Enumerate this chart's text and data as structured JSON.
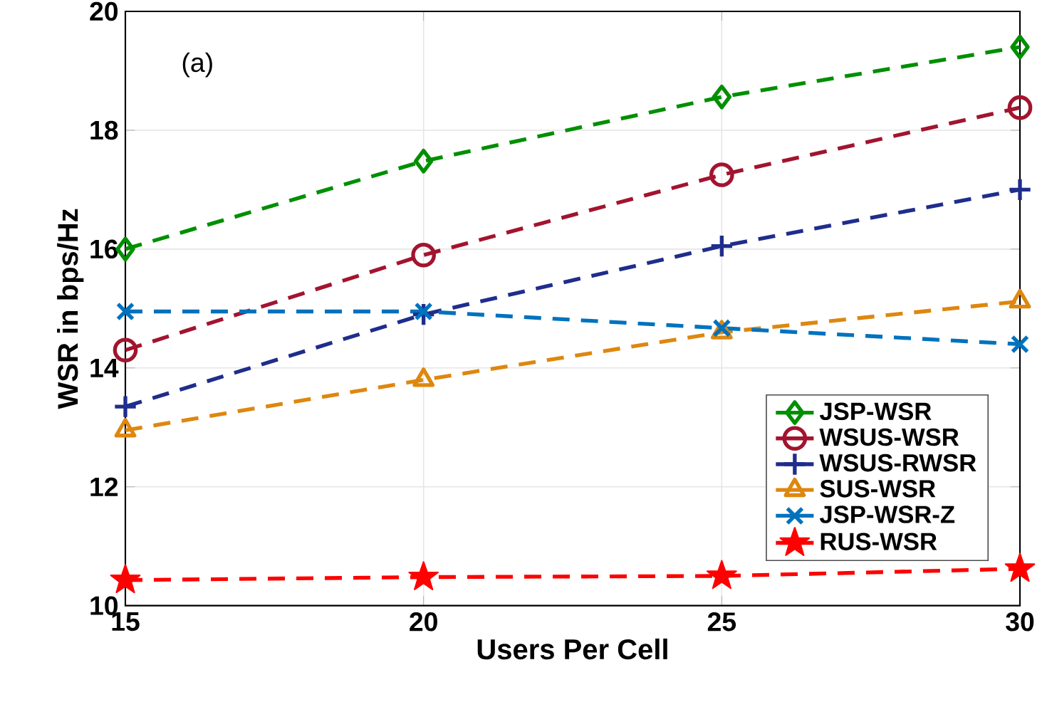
{
  "chart_data": {
    "type": "line",
    "xlabel": "Users Per Cell",
    "ylabel": "WSR in bps/Hz",
    "annotations": [
      "(a)"
    ],
    "x": [
      15,
      20,
      25,
      30
    ],
    "series": [
      {
        "name": "JSP-WSR",
        "color": "#008f00",
        "marker": "diamond",
        "values": [
          16.0,
          17.48,
          18.56,
          19.4
        ]
      },
      {
        "name": "WSUS-WSR",
        "color": "#a2142f",
        "marker": "circle",
        "values": [
          14.3,
          15.9,
          17.25,
          18.38
        ]
      },
      {
        "name": "WSUS-RWSR",
        "color": "#1f2d8c",
        "marker": "plus",
        "values": [
          13.35,
          14.9,
          16.05,
          17.0
        ]
      },
      {
        "name": "SUS-WSR",
        "color": "#de870f",
        "marker": "triangle",
        "values": [
          12.95,
          13.8,
          14.6,
          15.12
        ]
      },
      {
        "name": "JSP-WSR-Z",
        "color": "#0072bd",
        "marker": "cross",
        "values": [
          14.95,
          14.95,
          14.67,
          14.4
        ]
      },
      {
        "name": "RUS-WSR",
        "color": "#ff0000",
        "marker": "star",
        "values": [
          10.43,
          10.48,
          10.5,
          10.62
        ]
      }
    ],
    "xlim": [
      15,
      30
    ],
    "xticks": [
      15,
      20,
      25,
      30
    ],
    "ylim": [
      10,
      20
    ],
    "yticks": [
      10,
      12,
      14,
      16,
      18,
      20
    ],
    "grid": true,
    "legend": "bottom right",
    "line_style": "dashed"
  }
}
